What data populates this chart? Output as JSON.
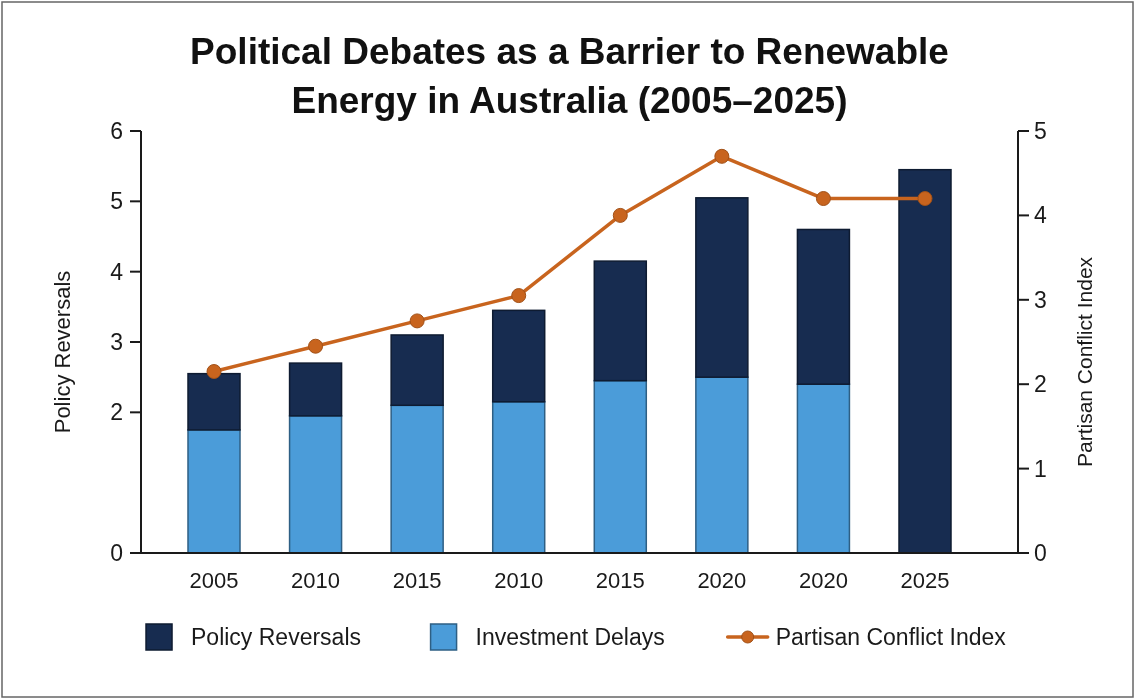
{
  "chart_data": {
    "type": "bar",
    "title": "Political Debates as a Barrier to Renewable Energy in Australia (2005–2025)",
    "ylabel": "Policy Reversals",
    "y2label": "Partisan Conflict Index",
    "categories": [
      "2005",
      "2010",
      "2015",
      "2010",
      "2015",
      "2020",
      "2020",
      "2025"
    ],
    "stacked": true,
    "series": [
      {
        "name": "Investment Delays",
        "color": "#4b9cd9",
        "values": [
          1.75,
          1.95,
          2.1,
          2.15,
          2.45,
          2.5,
          2.4,
          null
        ]
      },
      {
        "name": "Policy Reversals",
        "color": "#172c50",
        "values": [
          0.8,
          0.75,
          1.0,
          1.3,
          1.7,
          2.55,
          2.2,
          5.45
        ]
      },
      {
        "name": "Partisan Conflict Index",
        "type": "line",
        "axis": "y2",
        "color": "#c8641e",
        "values": [
          2.15,
          2.45,
          2.75,
          3.05,
          4.0,
          4.7,
          4.2,
          4.2
        ]
      }
    ],
    "ylim": [
      0,
      6
    ],
    "yticks": [
      0,
      2,
      3,
      4,
      5,
      6
    ],
    "y2lim": [
      0,
      5
    ],
    "y2ticks": [
      0,
      1,
      2,
      3,
      4,
      5
    ],
    "marker": "circle",
    "line_style": "solid",
    "legend": "bottom"
  }
}
